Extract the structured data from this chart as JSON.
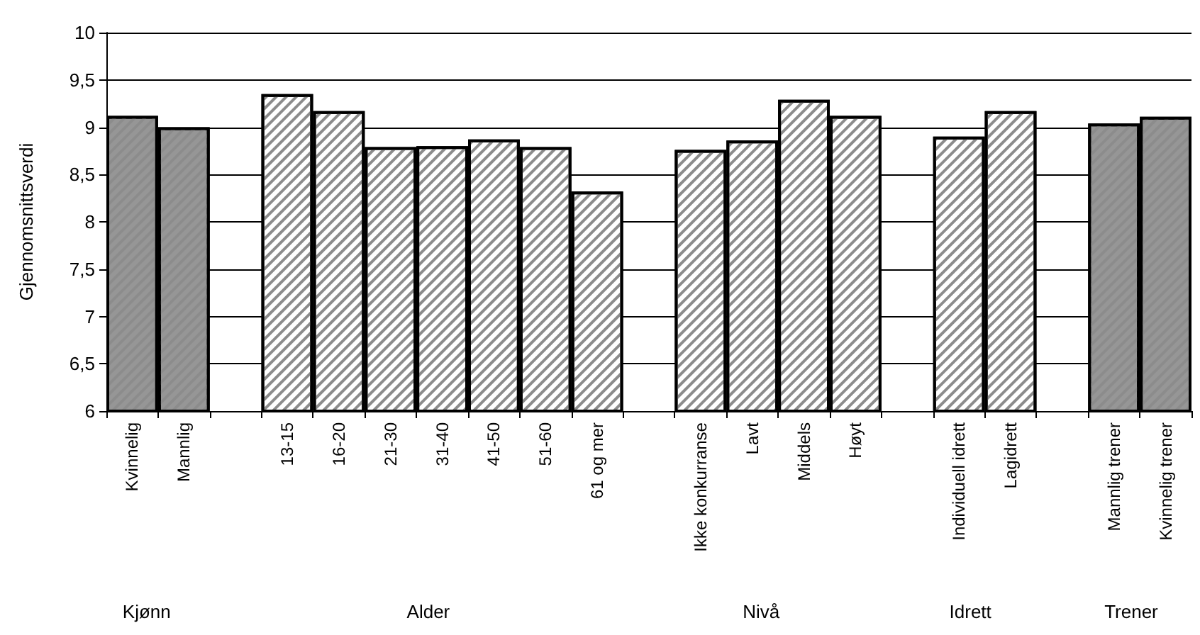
{
  "chart_data": {
    "type": "bar",
    "ylabel": "Gjennomsnittsverdi",
    "categories": [
      "Kvinnelig",
      "Mannlig",
      null,
      "13-15",
      "16-20",
      "21-30",
      "31-40",
      "41-50",
      "51-60",
      "61 og mer",
      null,
      "Ikke konkurranse",
      "Lavt",
      "Middels",
      "Høyt",
      null,
      "Individuell idrett",
      "Lagidrett",
      null,
      "Mannlig trener",
      "Kvinnelig trener"
    ],
    "values": [
      9.12,
      9.0,
      null,
      9.35,
      9.17,
      8.79,
      8.8,
      8.87,
      8.79,
      8.32,
      null,
      8.76,
      8.86,
      9.29,
      9.12,
      null,
      8.9,
      9.17,
      null,
      9.04,
      9.11
    ],
    "colors": [
      "#969696",
      "#969696",
      null,
      "#ffffff",
      "#ffffff",
      "#ffffff",
      "#ffffff",
      "#ffffff",
      "#ffffff",
      "#ffffff",
      null,
      "#ffffff",
      "#ffffff",
      "#ffffff",
      "#ffffff",
      null,
      "#ffffff",
      "#ffffff",
      null,
      "#969696",
      "#969696"
    ],
    "ylim": [
      6,
      10
    ],
    "yticks": [
      6,
      {
        "value": 6.5,
        "label": "6,5"
      },
      7,
      {
        "value": 7.5,
        "label": "7,5"
      },
      8,
      {
        "value": 8.5,
        "label": "8,5"
      },
      9,
      {
        "value": 9.5,
        "label": "9,5"
      },
      10
    ],
    "grid": "y",
    "annotations": [
      "Kjønn",
      "Alder",
      "Nivå",
      "Idrett",
      "Trener"
    ]
  }
}
